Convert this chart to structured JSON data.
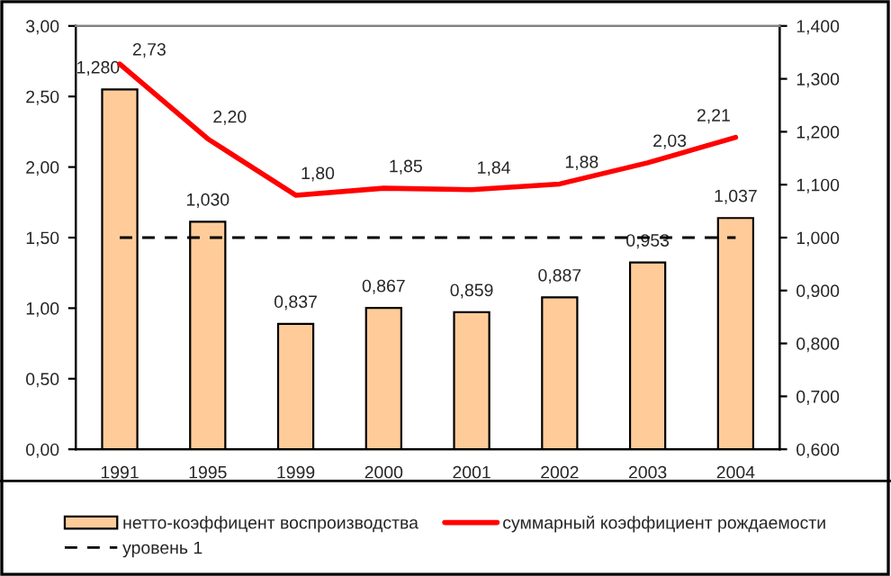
{
  "chart_data": {
    "type": "bar",
    "categories": [
      "1991",
      "1995",
      "1999",
      "2000",
      "2001",
      "2002",
      "2003",
      "2004"
    ],
    "series": [
      {
        "name": "нетто-коэффицент воспроизводства",
        "axis": "y2",
        "color": "#ffcc99",
        "values": [
          1.28,
          1.03,
          0.837,
          0.867,
          0.859,
          0.887,
          0.953,
          1.037
        ],
        "value_labels": [
          "1,280",
          "1,030",
          "0,837",
          "0,867",
          "0,859",
          "0,887",
          "0,953",
          "1,037"
        ]
      },
      {
        "name": "суммарный коэффициент рождаемости",
        "type": "line",
        "axis": "y",
        "color": "#ff0000",
        "values": [
          2.73,
          2.2,
          1.8,
          1.85,
          1.84,
          1.88,
          2.03,
          2.21
        ],
        "value_labels": [
          "2,73",
          "2,20",
          "1,80",
          "1,85",
          "1,84",
          "1,88",
          "2,03",
          "2,21"
        ]
      }
    ],
    "ylim": [
      0,
      3
    ],
    "yticks": [
      {
        "value": 0,
        "label": "0,00"
      },
      {
        "value": 0.5,
        "label": "0,50"
      },
      {
        "value": 1,
        "label": "1,00"
      },
      {
        "value": 1.5,
        "label": "1,50"
      },
      {
        "value": 2,
        "label": "2,00"
      },
      {
        "value": 2.5,
        "label": "2,50"
      },
      {
        "value": 3,
        "label": "3,00"
      }
    ],
    "y2lim": [
      0.6,
      1.4
    ],
    "y2ticks": [
      {
        "value": 0.6,
        "label": "0,600"
      },
      {
        "value": 0.7,
        "label": "0,700"
      },
      {
        "value": 0.8,
        "label": "0,800"
      },
      {
        "value": 0.9,
        "label": "0,900"
      },
      {
        "value": 1.0,
        "label": "1,000"
      },
      {
        "value": 1.1,
        "label": "1,100"
      },
      {
        "value": 1.2,
        "label": "1,200"
      },
      {
        "value": 1.3,
        "label": "1,300"
      },
      {
        "value": 1.4,
        "label": "1,400"
      }
    ],
    "ref_lines": [
      {
        "axis": "y2",
        "value": 1.0,
        "label": "уровень 1",
        "color": "#000000",
        "line_style": "dashed"
      }
    ],
    "legend": "bottom",
    "grid": false
  }
}
